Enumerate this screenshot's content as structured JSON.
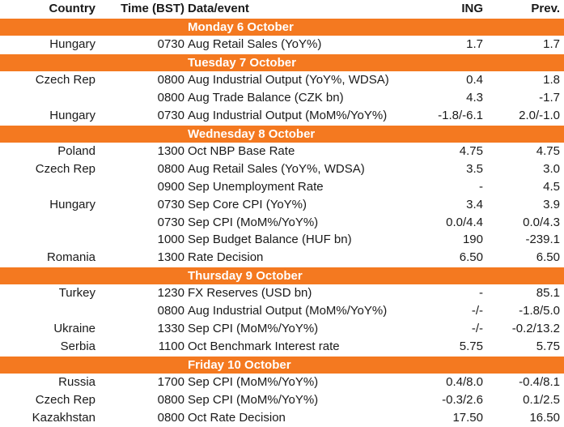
{
  "table": {
    "header": [
      "Country",
      "Time (BST)",
      "Data/event",
      "ING",
      "Prev."
    ],
    "sections": [
      {
        "title": "Monday 6 October",
        "rows": [
          [
            "Hungary",
            "0730",
            "Aug Retail Sales (YoY%)",
            "1.7",
            "1.7"
          ]
        ]
      },
      {
        "title": "Tuesday 7 October",
        "rows": [
          [
            "Czech Rep",
            "0800",
            "Aug Industrial Output (YoY%, WDSA)",
            "0.4",
            "1.8"
          ],
          [
            null,
            "0800",
            "Aug Trade Balance (CZK bn)",
            "4.3",
            "-1.7"
          ],
          [
            "Hungary",
            "0730",
            "Aug Industrial Output (MoM%/YoY%)",
            "-1.8/-6.1",
            "2.0/-1.0"
          ]
        ]
      },
      {
        "title": "Wednesday 8 October",
        "rows": [
          [
            "Poland",
            "1300",
            "Oct NBP Base Rate",
            "4.75",
            "4.75"
          ],
          [
            "Czech Rep",
            "0800",
            "Aug Retail Sales (YoY%, WDSA)",
            "3.5",
            "3.0"
          ],
          [
            null,
            "0900",
            "Sep Unemployment Rate",
            "-",
            "4.5"
          ],
          [
            "Hungary",
            "0730",
            "Sep Core CPI (YoY%)",
            "3.4",
            "3.9"
          ],
          [
            null,
            "0730",
            "Sep CPI (MoM%/YoY%)",
            "0.0/4.4",
            "0.0/4.3"
          ],
          [
            null,
            "1000",
            "Sep Budget Balance (HUF bn)",
            "190",
            "-239.1"
          ],
          [
            "Romania",
            "1300",
            "Rate Decision",
            "6.50",
            "6.50"
          ]
        ]
      },
      {
        "title": "Thursday 9 October",
        "rows": [
          [
            "Turkey",
            "1230",
            "FX Reserves (USD bn)",
            "-",
            "85.1"
          ],
          [
            null,
            "0800",
            "Aug Industrial Output (MoM%/YoY%)",
            "-/-",
            "-1.8/5.0"
          ],
          [
            "Ukraine",
            "1330",
            "Sep CPI (MoM%/YoY%)",
            "-/-",
            "-0.2/13.2"
          ],
          [
            "Serbia",
            "1100",
            "Oct Benchmark Interest rate",
            "5.75",
            "5.75"
          ]
        ]
      },
      {
        "title": "Friday 10 October",
        "rows": [
          [
            "Russia",
            "1700",
            "Sep CPI (MoM%/YoY%)",
            "0.4/8.0",
            "-0.4/8.1"
          ],
          [
            "Czech Rep",
            "0800",
            "Sep CPI (MoM%/YoY%)",
            "-0.3/2.6",
            "0.1/2.5"
          ],
          [
            "Kazakhstan",
            "0800",
            "Oct Rate Decision",
            "17.50",
            "16.50"
          ]
        ]
      }
    ]
  }
}
